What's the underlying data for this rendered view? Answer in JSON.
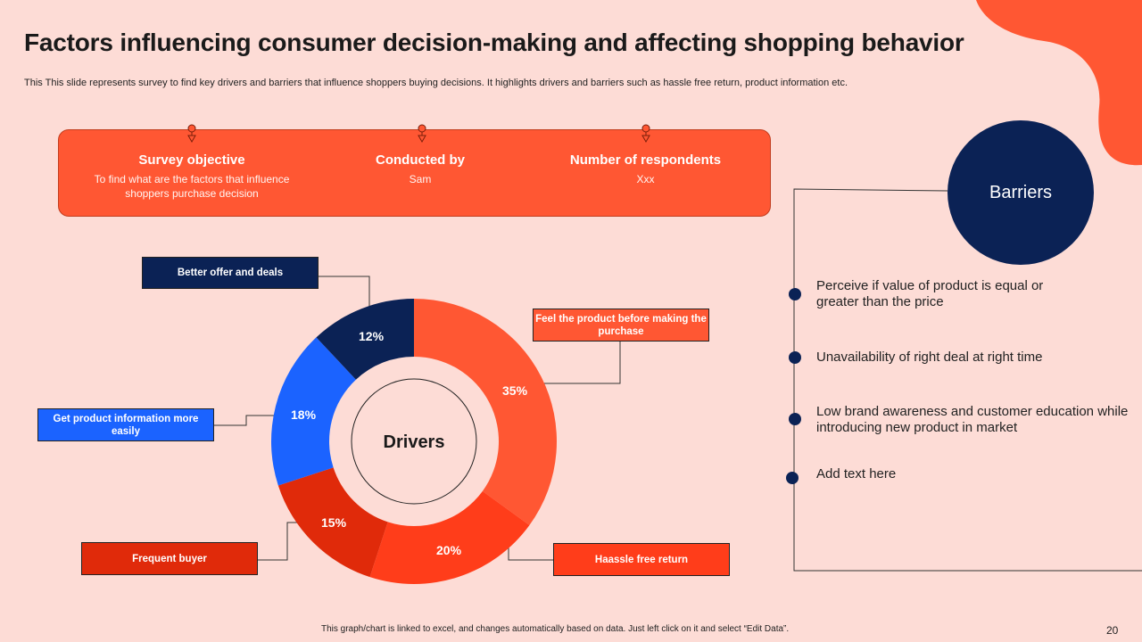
{
  "slide": {
    "title": "Factors influencing consumer decision-making and affecting shopping behavior",
    "subtitle": "This This slide represents survey to find key drivers and barriers that influence shoppers buying decisions. It highlights drivers and barriers such as hassle free return, product information etc.",
    "footer_note": "This graph/chart is linked to excel, and changes automatically based on data. Just left click on it and select “Edit Data”.",
    "page_number": "20"
  },
  "survey": {
    "objective_heading": "Survey objective",
    "objective_text": "To find what are the factors that influence shoppers purchase decision",
    "conducted_heading": "Conducted by",
    "conducted_value": "Sam",
    "respondents_heading": "Number of respondents",
    "respondents_value": "Xxx"
  },
  "chart_data": {
    "type": "pie",
    "title": "Drivers",
    "categories": [
      "Feel the product before making the purchase",
      "Haassle free return",
      "Frequent buyer",
      "Get product information more easily",
      "Better offer and deals"
    ],
    "values": [
      35,
      20,
      15,
      18,
      12
    ],
    "labels": [
      "35%",
      "20%",
      "15%",
      "18%",
      "12%"
    ],
    "colors": [
      "#FF5733",
      "#FF3D1A",
      "#E02A0A",
      "#1B63FF",
      "#0B2255"
    ]
  },
  "barriers": {
    "title": "Barriers",
    "items": [
      "Perceive if value of product is equal or greater than the price",
      "Unavailability of right deal at right time",
      "Low brand awareness and customer education while introducing new product in market",
      "Add text here"
    ]
  },
  "colors": {
    "background": "#FDDCD6",
    "accent": "#FF5733",
    "navy": "#0B2255"
  }
}
